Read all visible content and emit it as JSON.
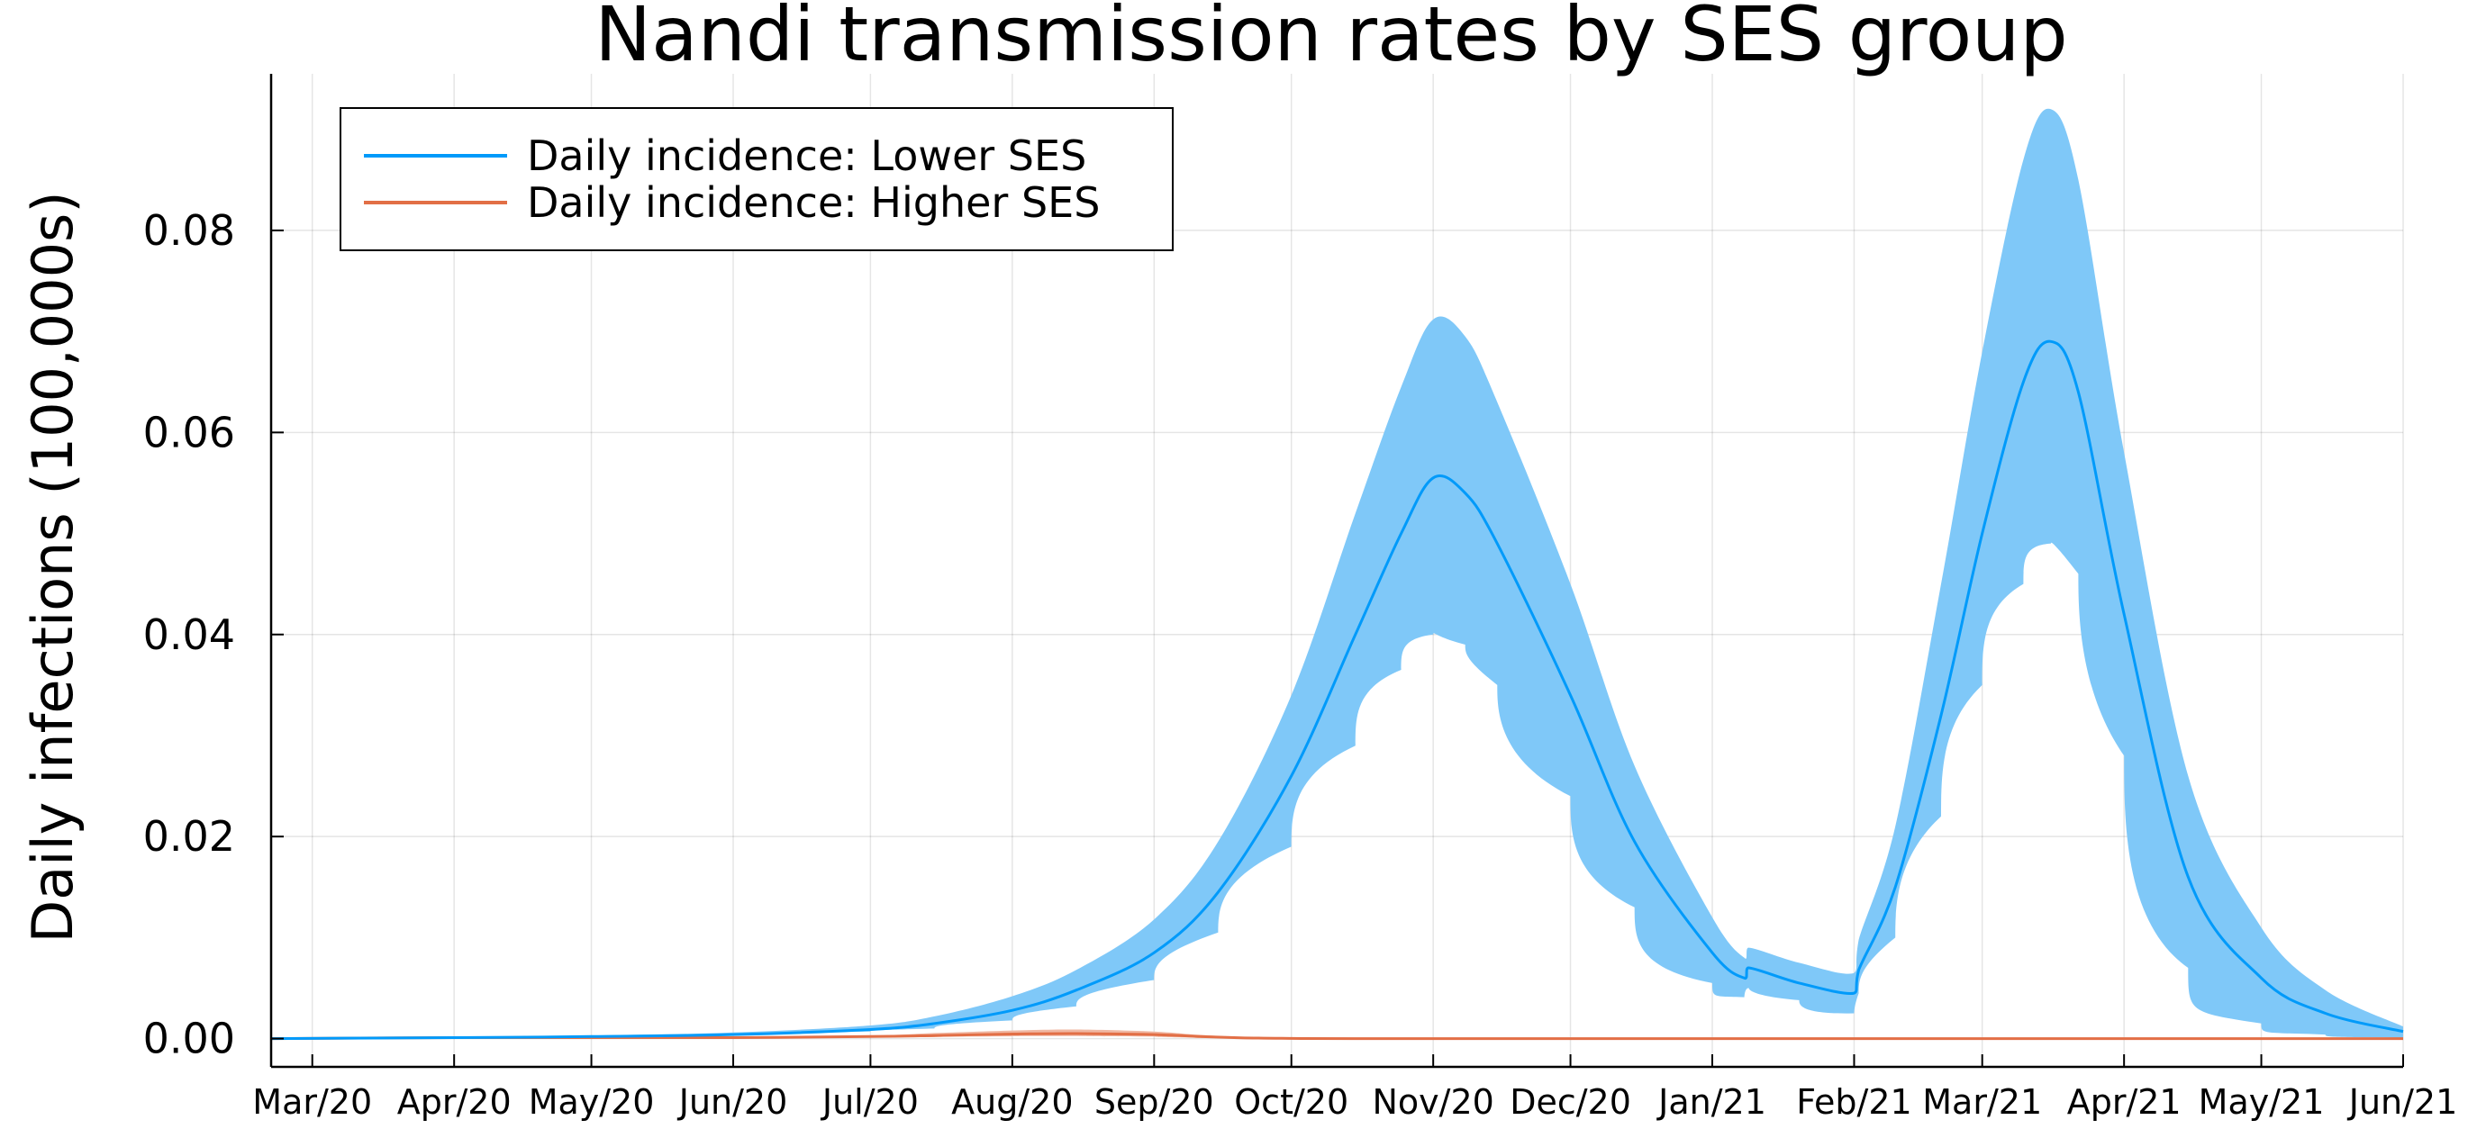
{
  "chart_data": {
    "type": "line",
    "title": "Nandi transmission rates by SES group",
    "xlabel": "",
    "ylabel": "Daily infections (100,000s)",
    "x_ticks": [
      "Mar/20",
      "Apr/20",
      "May/20",
      "Jun/20",
      "Jul/20",
      "Aug/20",
      "Sep/20",
      "Oct/20",
      "Nov/20",
      "Dec/20",
      "Jan/21",
      "Feb/21",
      "Mar/21",
      "Apr/21",
      "May/21",
      "Jun/21"
    ],
    "y_ticks": [
      "0.00",
      "0.02",
      "0.04",
      "0.06",
      "0.08"
    ],
    "xlim": [
      "2020-02-21",
      "2021-06-01"
    ],
    "ylim": [
      -0.0028,
      0.0955
    ],
    "grid": true,
    "legend_position": "top-left",
    "series": [
      {
        "name": "Daily incidence: Lower SES",
        "color": "#009AFA",
        "band_color": "#7FC8F8",
        "x": [
          "2020-02-21",
          "2020-04-01",
          "2020-05-01",
          "2020-06-01",
          "2020-07-01",
          "2020-07-15",
          "2020-08-01",
          "2020-08-15",
          "2020-09-01",
          "2020-09-15",
          "2020-10-01",
          "2020-10-15",
          "2020-10-25",
          "2020-11-01",
          "2020-11-08",
          "2020-11-15",
          "2020-12-01",
          "2020-12-15",
          "2021-01-01",
          "2021-01-08",
          "2021-01-09",
          "2021-01-20",
          "2021-02-01",
          "2021-02-02",
          "2021-02-10",
          "2021-02-20",
          "2021-03-01",
          "2021-03-10",
          "2021-03-16",
          "2021-03-22",
          "2021-04-01",
          "2021-04-15",
          "2021-05-01",
          "2021-05-15",
          "2021-06-01"
        ],
        "values": [
          0.0,
          0.0001,
          0.0002,
          0.0004,
          0.0009,
          0.0015,
          0.0028,
          0.0048,
          0.0085,
          0.0145,
          0.026,
          0.04,
          0.05,
          0.0555,
          0.054,
          0.049,
          0.034,
          0.0195,
          0.0085,
          0.006,
          0.007,
          0.0055,
          0.0045,
          0.0068,
          0.015,
          0.032,
          0.05,
          0.065,
          0.069,
          0.064,
          0.042,
          0.016,
          0.006,
          0.0025,
          0.0007
        ],
        "lower": [
          0.0,
          0.0001,
          0.0001,
          0.0003,
          0.0007,
          0.001,
          0.0018,
          0.0032,
          0.0058,
          0.0105,
          0.019,
          0.029,
          0.0365,
          0.04,
          0.039,
          0.035,
          0.024,
          0.013,
          0.0055,
          0.0041,
          0.005,
          0.0038,
          0.0025,
          0.0045,
          0.01,
          0.022,
          0.035,
          0.045,
          0.049,
          0.046,
          0.028,
          0.007,
          0.0015,
          0.0004,
          0.0001
        ],
        "upper": [
          0.0,
          0.0001,
          0.0003,
          0.0006,
          0.0013,
          0.0022,
          0.0042,
          0.0068,
          0.0118,
          0.0195,
          0.034,
          0.052,
          0.0645,
          0.0712,
          0.0695,
          0.063,
          0.045,
          0.027,
          0.012,
          0.008,
          0.009,
          0.0075,
          0.0065,
          0.0098,
          0.021,
          0.045,
          0.068,
          0.087,
          0.092,
          0.085,
          0.058,
          0.026,
          0.011,
          0.0048,
          0.0012
        ]
      },
      {
        "name": "Daily incidence: Higher SES",
        "color": "#E26F46",
        "band_color": "#F0B7A2",
        "x": [
          "2020-02-21",
          "2020-04-01",
          "2020-05-01",
          "2020-06-01",
          "2020-07-01",
          "2020-07-15",
          "2020-08-01",
          "2020-08-15",
          "2020-09-01",
          "2020-09-10",
          "2020-09-20",
          "2020-10-01",
          "2020-10-15",
          "2021-06-01"
        ],
        "values": [
          0.0,
          0.0001,
          0.0001,
          0.0001,
          0.0002,
          0.0003,
          0.00045,
          0.0005,
          0.0004,
          0.00022,
          8e-05,
          2e-05,
          0.0,
          0.0
        ],
        "lower": [
          0.0,
          5e-05,
          5e-05,
          5e-05,
          0.0001,
          0.00015,
          0.00022,
          0.00025,
          0.0002,
          0.0001,
          3e-05,
          0.0,
          0.0,
          0.0
        ],
        "upper": [
          0.0,
          0.00015,
          0.00015,
          0.0002,
          0.0003,
          0.00055,
          0.0008,
          0.0009,
          0.0007,
          0.0004,
          0.00015,
          4e-05,
          0.0,
          0.0
        ]
      }
    ]
  }
}
